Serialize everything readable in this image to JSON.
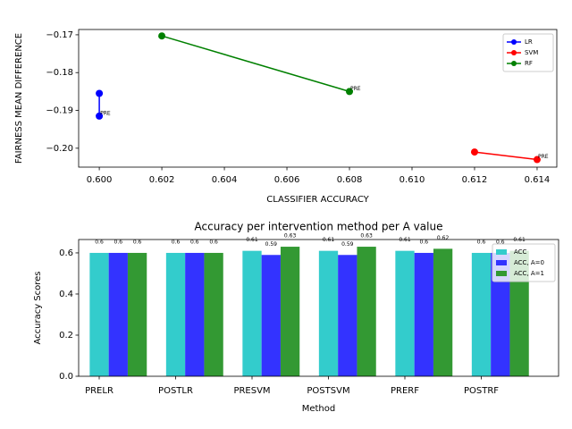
{
  "chart_data": [
    {
      "type": "line",
      "xlabel": "CLASSIFIER ACCURACY",
      "ylabel": "FAIRNESS MEAN DIFFERENCE",
      "series": [
        {
          "name": "LR",
          "color": "#0000ff",
          "x": [
            0.6,
            0.6
          ],
          "values": [
            -0.1855,
            -0.1915
          ]
        },
        {
          "name": "SVM",
          "color": "#ff0000",
          "x": [
            0.612,
            0.614
          ],
          "values": [
            -0.201,
            -0.203
          ]
        },
        {
          "name": "RF",
          "color": "#008000",
          "x": [
            0.602,
            0.608
          ],
          "values": [
            -0.1703,
            -0.185
          ]
        }
      ],
      "annotations": [
        {
          "text": "PRE",
          "x": 0.6,
          "y": -0.1915
        },
        {
          "text": "PRE",
          "x": 0.614,
          "y": -0.203
        },
        {
          "text": "PRE",
          "x": 0.608,
          "y": -0.185
        }
      ],
      "xlim": [
        0.59934,
        0.61463
      ],
      "ylim": [
        -0.205,
        -0.1686
      ],
      "xticks": [
        {
          "value": 0.6,
          "label": "0.600"
        },
        {
          "value": 0.602,
          "label": "0.602"
        },
        {
          "value": 0.604,
          "label": "0.604"
        },
        {
          "value": 0.606,
          "label": "0.606"
        },
        {
          "value": 0.608,
          "label": "0.608"
        },
        {
          "value": 0.61,
          "label": "0.610"
        },
        {
          "value": 0.612,
          "label": "0.612"
        },
        {
          "value": 0.614,
          "label": "0.614"
        }
      ],
      "yticks": [
        {
          "value": -0.2,
          "label": "−0.20"
        },
        {
          "value": -0.19,
          "label": "−0.19"
        },
        {
          "value": -0.18,
          "label": "−0.18"
        },
        {
          "value": -0.17,
          "label": "−0.17"
        }
      ],
      "legend": "upper right"
    },
    {
      "type": "bar",
      "title": "Accuracy per intervention method per A value",
      "xlabel": "Method",
      "ylabel": "Accuracy Scores",
      "categories": [
        "PRELR",
        "POSTLR",
        "PRESVM",
        "POSTSVM",
        "PRERF",
        "POSTRF"
      ],
      "series": [
        {
          "name": "ACC",
          "color": "#33cccc",
          "values": [
            0.6,
            0.6,
            0.61,
            0.61,
            0.61,
            0.6
          ]
        },
        {
          "name": "ACC, A=0",
          "color": "#3333ff",
          "values": [
            0.6,
            0.6,
            0.59,
            0.59,
            0.6,
            0.6
          ]
        },
        {
          "name": "ACC, A=1",
          "color": "#339933",
          "values": [
            0.6,
            0.6,
            0.63,
            0.63,
            0.62,
            0.61
          ]
        }
      ],
      "ylim": [
        0,
        0.665
      ],
      "yticks": [
        {
          "value": 0,
          "label": "0.0"
        },
        {
          "value": 0.2,
          "label": "0.2"
        },
        {
          "value": 0.4,
          "label": "0.4"
        },
        {
          "value": 0.6,
          "label": "0.6"
        }
      ],
      "legend": "upper right"
    }
  ]
}
